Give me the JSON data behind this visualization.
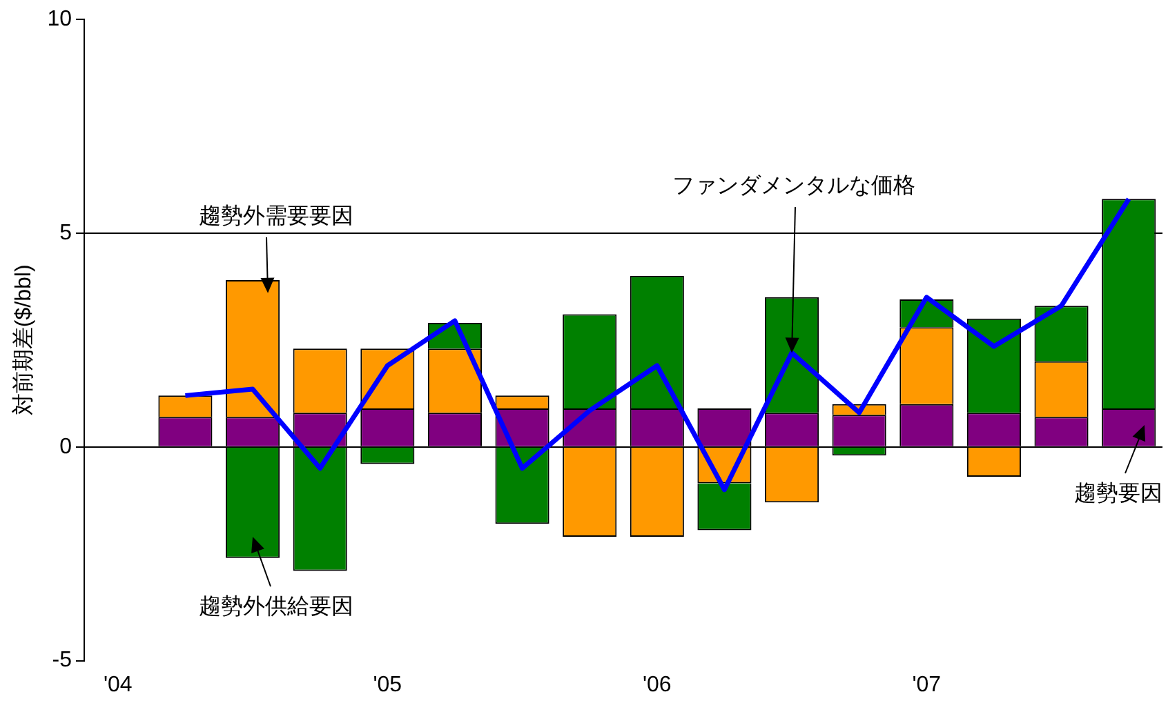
{
  "chart_data": {
    "type": "bar",
    "ylabel": "対前期差($/bbl)",
    "categories": [
      "'04",
      null,
      null,
      null,
      "'05",
      null,
      null,
      null,
      "'06",
      null,
      null,
      null,
      "'07",
      null,
      null,
      null
    ],
    "stacked": true,
    "series": [
      {
        "color": "#800080",
        "values": [
          null,
          0.7,
          0.7,
          0.8,
          0.9,
          0.8,
          0.9,
          0.9,
          0.9,
          0.9,
          0.8,
          0.75,
          1.0,
          0.8,
          0.7,
          0.9
        ]
      },
      {
        "color": "#ff9900",
        "values": [
          null,
          0.5,
          3.2,
          1.5,
          1.4,
          1.5,
          0.3,
          -2.1,
          -2.1,
          -0.85,
          -1.3,
          0.25,
          1.8,
          -0.7,
          1.3,
          0
        ]
      },
      {
        "color": "#008000",
        "values": [
          null,
          0,
          -2.6,
          -2.9,
          -0.4,
          0.6,
          -1.8,
          2.2,
          3.1,
          -1.1,
          2.7,
          -0.2,
          0.65,
          2.2,
          1.3,
          4.9
        ]
      },
      {
        "type": "line",
        "color": "#0000ff",
        "values": [
          null,
          1.2,
          1.35,
          -0.5,
          1.9,
          2.95,
          -0.5,
          0.85,
          1.9,
          -1.0,
          2.2,
          0.8,
          3.5,
          2.35,
          3.3,
          5.8
        ]
      }
    ],
    "ylim": [
      -5,
      10
    ],
    "yticks": [
      -5,
      0,
      5,
      10
    ],
    "grid": "y",
    "legend": false,
    "marker": "none",
    "annotations": [
      {
        "text": "趨勢外需要要因",
        "y": 3.6
      },
      {
        "text": "趨勢外供給要因",
        "y": -2.1
      },
      {
        "text": "ファンダメンタルな価格",
        "y": 2.2
      },
      "趨勢要因"
    ]
  }
}
